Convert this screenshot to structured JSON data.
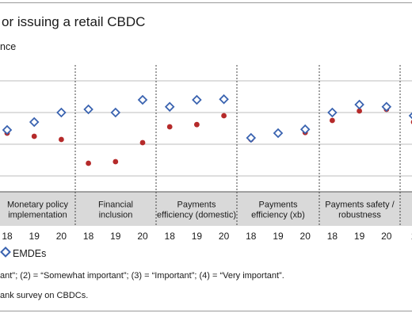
{
  "title": "or issuing a retail CBDC",
  "subtitle": "nce",
  "legend_label": "EMDEs",
  "note": "ant\"; (2) = “Somewhat important”; (3) = “Important”; (4) = “Very important”.",
  "source": "ank survey on CBDCs.",
  "colors": {
    "emde": "#3a63b0",
    "advanced": "#b52a2a",
    "grid": "#bdbdbd",
    "category_band": "#d9d9d9"
  },
  "chart_data": {
    "type": "scatter",
    "ylim": [
      0,
      4
    ],
    "y_gridlines": [
      0.5,
      1.5,
      2.5,
      3.5
    ],
    "x_tick_labels": [
      "18",
      "19",
      "20",
      "18",
      "19",
      "20",
      "18",
      "19",
      "20",
      "18",
      "19",
      "20",
      "18",
      "19",
      "20",
      "1"
    ],
    "groups": [
      {
        "label_lines": [
          "Monetary policy",
          "implementation"
        ]
      },
      {
        "label_lines": [
          "Financial",
          "inclusion"
        ]
      },
      {
        "label_lines": [
          "Payments",
          "efficiency (domestic)"
        ]
      },
      {
        "label_lines": [
          "Payments",
          "efficiency (xb)"
        ]
      },
      {
        "label_lines": [
          "Payments safety /",
          "robustness"
        ]
      },
      {
        "label_lines": [
          ""
        ]
      }
    ],
    "series": [
      {
        "name": "EMDEs",
        "marker": "diamond",
        "values": [
          1.95,
          2.2,
          2.5,
          2.6,
          2.5,
          2.9,
          2.68,
          2.9,
          2.92,
          1.7,
          1.85,
          1.97,
          2.5,
          2.75,
          2.68,
          2.4
        ]
      },
      {
        "marker": "circle",
        "values": [
          1.85,
          1.75,
          1.65,
          0.9,
          0.95,
          1.55,
          2.05,
          2.12,
          2.4,
          1.65,
          1.85,
          1.87,
          2.25,
          2.55,
          2.6,
          2.2
        ]
      }
    ]
  }
}
